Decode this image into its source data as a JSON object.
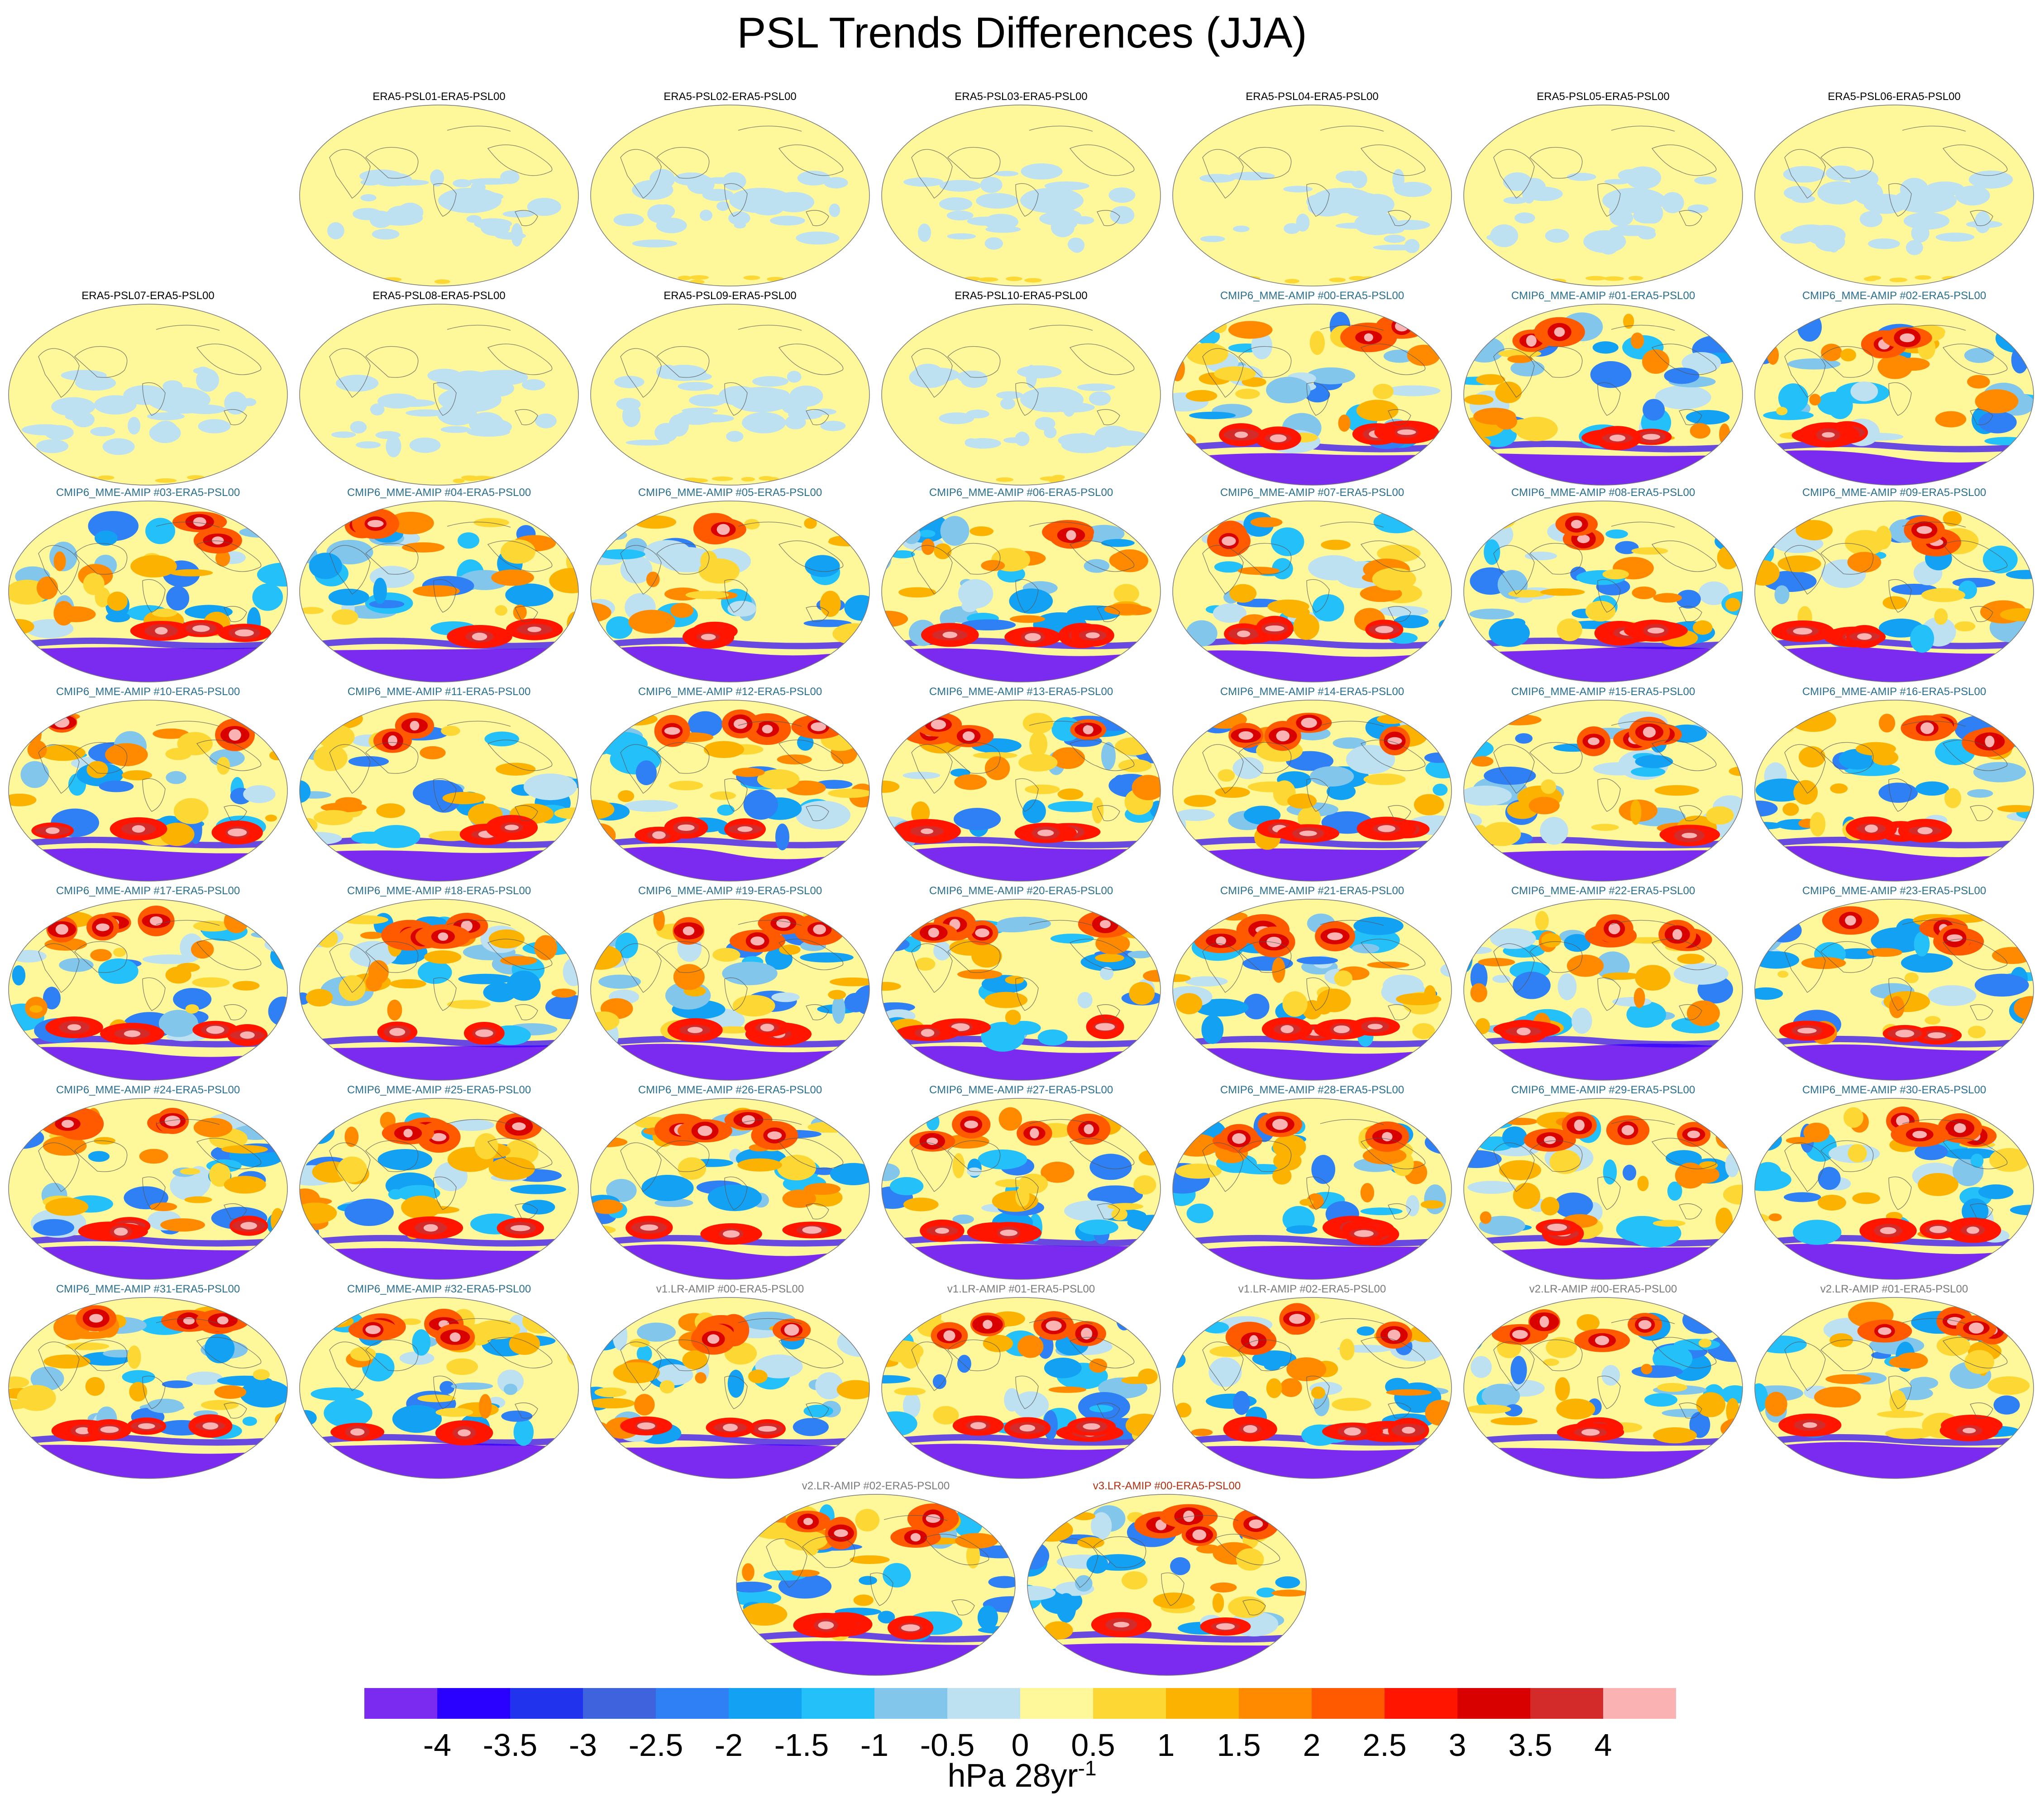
{
  "title": "PSL Trends Differences (JJA)",
  "colorbar": {
    "colors": [
      "#7b2bf0",
      "#2a00ff",
      "#2233ee",
      "#3f63dd",
      "#2f80f5",
      "#13a2f3",
      "#24c0fa",
      "#83c6ec",
      "#bde1f1",
      "#fff89a",
      "#fdd835",
      "#fbb200",
      "#ff8a00",
      "#ff5a00",
      "#ff1500",
      "#d90000",
      "#d32a2a",
      "#fbb2b2"
    ],
    "labels": [
      "-4",
      "-3.5",
      "-3",
      "-2.5",
      "-2",
      "-1.5",
      "-1",
      "-0.5",
      "0",
      "0.5",
      "1",
      "1.5",
      "2",
      "2.5",
      "3",
      "3.5",
      "4"
    ]
  },
  "units": {
    "text": "hPa 28yr",
    "exp": "-1"
  },
  "title_colors": {
    "era5": "#000000",
    "cmip6": "#2a6f8f",
    "v1": "#7a7a7a",
    "v2": "#7a7a7a",
    "v3": "#b03010"
  },
  "panels": [
    {
      "label": "ERA5-PSL01-ERA5-PSL00",
      "group": "era5"
    },
    {
      "label": "ERA5-PSL02-ERA5-PSL00",
      "group": "era5"
    },
    {
      "label": "ERA5-PSL03-ERA5-PSL00",
      "group": "era5"
    },
    {
      "label": "ERA5-PSL04-ERA5-PSL00",
      "group": "era5"
    },
    {
      "label": "ERA5-PSL05-ERA5-PSL00",
      "group": "era5"
    },
    {
      "label": "ERA5-PSL06-ERA5-PSL00",
      "group": "era5"
    },
    {
      "label": "ERA5-PSL07-ERA5-PSL00",
      "group": "era5"
    },
    {
      "label": "ERA5-PSL08-ERA5-PSL00",
      "group": "era5"
    },
    {
      "label": "ERA5-PSL09-ERA5-PSL00",
      "group": "era5"
    },
    {
      "label": "ERA5-PSL10-ERA5-PSL00",
      "group": "era5"
    },
    {
      "label": "CMIP6_MME-AMIP  #00-ERA5-PSL00",
      "group": "cmip6"
    },
    {
      "label": "CMIP6_MME-AMIP  #01-ERA5-PSL00",
      "group": "cmip6"
    },
    {
      "label": "CMIP6_MME-AMIP  #02-ERA5-PSL00",
      "group": "cmip6"
    },
    {
      "label": "CMIP6_MME-AMIP  #03-ERA5-PSL00",
      "group": "cmip6"
    },
    {
      "label": "CMIP6_MME-AMIP  #04-ERA5-PSL00",
      "group": "cmip6"
    },
    {
      "label": "CMIP6_MME-AMIP  #05-ERA5-PSL00",
      "group": "cmip6"
    },
    {
      "label": "CMIP6_MME-AMIP  #06-ERA5-PSL00",
      "group": "cmip6"
    },
    {
      "label": "CMIP6_MME-AMIP  #07-ERA5-PSL00",
      "group": "cmip6"
    },
    {
      "label": "CMIP6_MME-AMIP  #08-ERA5-PSL00",
      "group": "cmip6"
    },
    {
      "label": "CMIP6_MME-AMIP  #09-ERA5-PSL00",
      "group": "cmip6"
    },
    {
      "label": "CMIP6_MME-AMIP  #10-ERA5-PSL00",
      "group": "cmip6"
    },
    {
      "label": "CMIP6_MME-AMIP  #11-ERA5-PSL00",
      "group": "cmip6"
    },
    {
      "label": "CMIP6_MME-AMIP  #12-ERA5-PSL00",
      "group": "cmip6"
    },
    {
      "label": "CMIP6_MME-AMIP  #13-ERA5-PSL00",
      "group": "cmip6"
    },
    {
      "label": "CMIP6_MME-AMIP  #14-ERA5-PSL00",
      "group": "cmip6"
    },
    {
      "label": "CMIP6_MME-AMIP  #15-ERA5-PSL00",
      "group": "cmip6"
    },
    {
      "label": "CMIP6_MME-AMIP  #16-ERA5-PSL00",
      "group": "cmip6"
    },
    {
      "label": "CMIP6_MME-AMIP  #17-ERA5-PSL00",
      "group": "cmip6"
    },
    {
      "label": "CMIP6_MME-AMIP  #18-ERA5-PSL00",
      "group": "cmip6"
    },
    {
      "label": "CMIP6_MME-AMIP  #19-ERA5-PSL00",
      "group": "cmip6"
    },
    {
      "label": "CMIP6_MME-AMIP  #20-ERA5-PSL00",
      "group": "cmip6"
    },
    {
      "label": "CMIP6_MME-AMIP  #21-ERA5-PSL00",
      "group": "cmip6"
    },
    {
      "label": "CMIP6_MME-AMIP  #22-ERA5-PSL00",
      "group": "cmip6"
    },
    {
      "label": "CMIP6_MME-AMIP  #23-ERA5-PSL00",
      "group": "cmip6"
    },
    {
      "label": "CMIP6_MME-AMIP  #24-ERA5-PSL00",
      "group": "cmip6"
    },
    {
      "label": "CMIP6_MME-AMIP  #25-ERA5-PSL00",
      "group": "cmip6"
    },
    {
      "label": "CMIP6_MME-AMIP  #26-ERA5-PSL00",
      "group": "cmip6"
    },
    {
      "label": "CMIP6_MME-AMIP  #27-ERA5-PSL00",
      "group": "cmip6"
    },
    {
      "label": "CMIP6_MME-AMIP  #28-ERA5-PSL00",
      "group": "cmip6"
    },
    {
      "label": "CMIP6_MME-AMIP  #29-ERA5-PSL00",
      "group": "cmip6"
    },
    {
      "label": "CMIP6_MME-AMIP  #30-ERA5-PSL00",
      "group": "cmip6"
    },
    {
      "label": "CMIP6_MME-AMIP  #31-ERA5-PSL00",
      "group": "cmip6"
    },
    {
      "label": "CMIP6_MME-AMIP  #32-ERA5-PSL00",
      "group": "cmip6"
    },
    {
      "label": "v1.LR-AMIP  #00-ERA5-PSL00",
      "group": "v1"
    },
    {
      "label": "v1.LR-AMIP  #01-ERA5-PSL00",
      "group": "v1"
    },
    {
      "label": "v1.LR-AMIP  #02-ERA5-PSL00",
      "group": "v1"
    },
    {
      "label": "v2.LR-AMIP  #00-ERA5-PSL00",
      "group": "v2"
    },
    {
      "label": "v2.LR-AMIP  #01-ERA5-PSL00",
      "group": "v2"
    },
    {
      "label": "v2.LR-AMIP  #02-ERA5-PSL00",
      "group": "v2"
    },
    {
      "label": "v3.LR-AMIP  #00-ERA5-PSL00",
      "group": "v3"
    }
  ]
}
